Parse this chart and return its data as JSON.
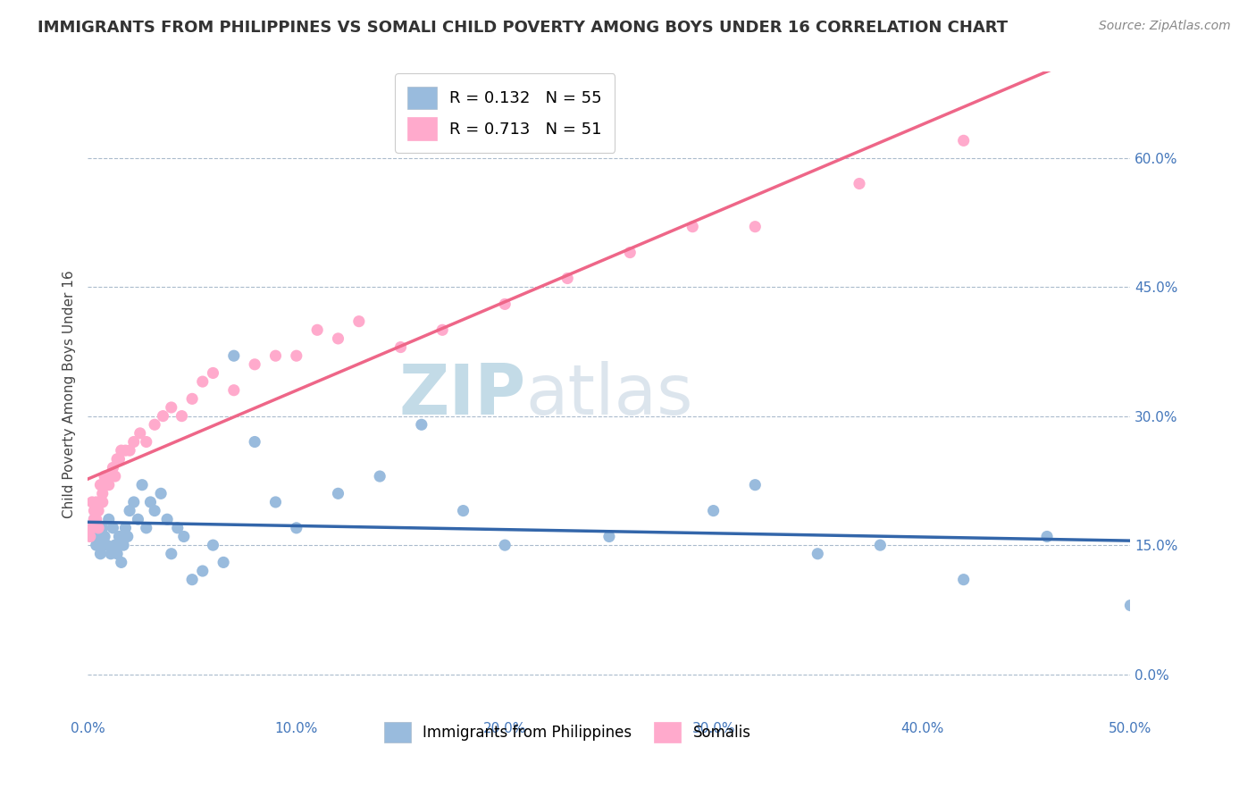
{
  "title": "IMMIGRANTS FROM PHILIPPINES VS SOMALI CHILD POVERTY AMONG BOYS UNDER 16 CORRELATION CHART",
  "source": "Source: ZipAtlas.com",
  "ylabel": "Child Poverty Among Boys Under 16",
  "xlim": [
    0.0,
    0.5
  ],
  "ylim": [
    -0.05,
    0.7
  ],
  "yticks": [
    0.0,
    0.15,
    0.3,
    0.45,
    0.6
  ],
  "xticks": [
    0.0,
    0.1,
    0.2,
    0.3,
    0.4,
    0.5
  ],
  "legend_r1": "R = 0.132",
  "legend_n1": "N = 55",
  "legend_r2": "R = 0.713",
  "legend_n2": "N = 51",
  "color_blue": "#99BBDD",
  "color_pink": "#FFAACC",
  "color_blue_line": "#3366AA",
  "color_pink_line": "#EE6688",
  "watermark": "ZIPAtlas",
  "watermark_color": "#CCDDE8",
  "title_fontsize": 13,
  "axis_label_fontsize": 11,
  "tick_fontsize": 11,
  "source_fontsize": 10,
  "blue_scatter_x": [
    0.002,
    0.003,
    0.003,
    0.004,
    0.004,
    0.005,
    0.005,
    0.006,
    0.006,
    0.007,
    0.008,
    0.009,
    0.01,
    0.011,
    0.012,
    0.013,
    0.014,
    0.015,
    0.016,
    0.017,
    0.018,
    0.019,
    0.02,
    0.022,
    0.024,
    0.026,
    0.028,
    0.03,
    0.032,
    0.035,
    0.038,
    0.04,
    0.043,
    0.046,
    0.05,
    0.055,
    0.06,
    0.065,
    0.07,
    0.08,
    0.09,
    0.1,
    0.12,
    0.14,
    0.16,
    0.18,
    0.2,
    0.25,
    0.3,
    0.32,
    0.35,
    0.38,
    0.42,
    0.46,
    0.5
  ],
  "blue_scatter_y": [
    0.16,
    0.17,
    0.18,
    0.15,
    0.19,
    0.17,
    0.16,
    0.15,
    0.14,
    0.17,
    0.16,
    0.15,
    0.18,
    0.14,
    0.17,
    0.15,
    0.14,
    0.16,
    0.13,
    0.15,
    0.17,
    0.16,
    0.19,
    0.2,
    0.18,
    0.22,
    0.17,
    0.2,
    0.19,
    0.21,
    0.18,
    0.14,
    0.17,
    0.16,
    0.11,
    0.12,
    0.15,
    0.13,
    0.37,
    0.27,
    0.2,
    0.17,
    0.21,
    0.23,
    0.29,
    0.19,
    0.15,
    0.16,
    0.19,
    0.22,
    0.14,
    0.15,
    0.11,
    0.16,
    0.08
  ],
  "pink_scatter_x": [
    0.001,
    0.002,
    0.002,
    0.003,
    0.003,
    0.004,
    0.004,
    0.005,
    0.005,
    0.006,
    0.006,
    0.007,
    0.007,
    0.008,
    0.008,
    0.009,
    0.01,
    0.011,
    0.012,
    0.013,
    0.014,
    0.015,
    0.016,
    0.018,
    0.02,
    0.022,
    0.025,
    0.028,
    0.032,
    0.036,
    0.04,
    0.045,
    0.05,
    0.055,
    0.06,
    0.07,
    0.08,
    0.09,
    0.1,
    0.11,
    0.12,
    0.13,
    0.15,
    0.17,
    0.2,
    0.23,
    0.26,
    0.29,
    0.32,
    0.37,
    0.42
  ],
  "pink_scatter_y": [
    0.16,
    0.17,
    0.2,
    0.18,
    0.19,
    0.18,
    0.2,
    0.17,
    0.19,
    0.2,
    0.22,
    0.2,
    0.21,
    0.23,
    0.22,
    0.22,
    0.22,
    0.23,
    0.24,
    0.23,
    0.25,
    0.25,
    0.26,
    0.26,
    0.26,
    0.27,
    0.28,
    0.27,
    0.29,
    0.3,
    0.31,
    0.3,
    0.32,
    0.34,
    0.35,
    0.33,
    0.36,
    0.37,
    0.37,
    0.4,
    0.39,
    0.41,
    0.38,
    0.4,
    0.43,
    0.46,
    0.49,
    0.52,
    0.52,
    0.57,
    0.62
  ]
}
